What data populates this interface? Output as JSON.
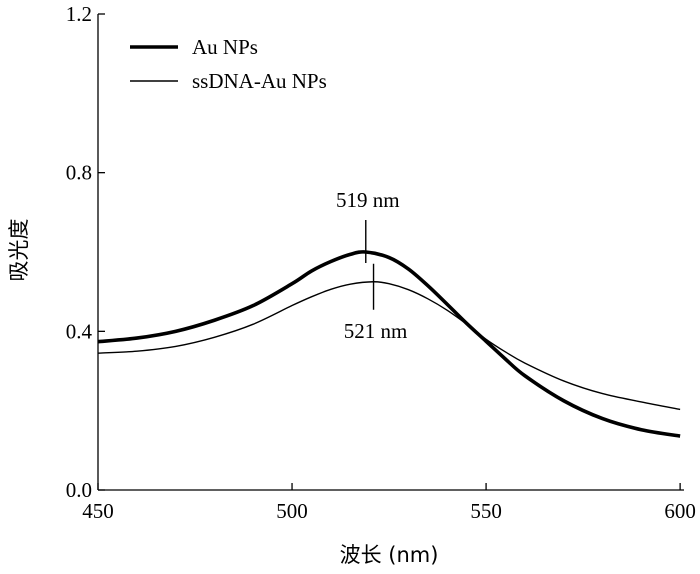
{
  "chart_data": {
    "type": "line",
    "title": "",
    "xlabel": "波长 (nm)",
    "ylabel": "吸光度",
    "xlim": [
      450,
      601
    ],
    "ylim": [
      0.0,
      1.2
    ],
    "x_ticks": [
      450,
      500,
      550,
      600
    ],
    "y_ticks": [
      0.0,
      0.4,
      0.8,
      1.2
    ],
    "x_tick_labels": [
      "450",
      "500",
      "550",
      "600"
    ],
    "y_tick_labels": [
      "0.0",
      "0.4",
      "0.8",
      "1.2"
    ],
    "grid": false,
    "legend_position": "top-left",
    "series": [
      {
        "name": "Au NPs",
        "line_width": "thick",
        "color": "#000000",
        "x": [
          450,
          460,
          470,
          480,
          490,
          500,
          505,
          510,
          515,
          519,
          525,
          530,
          535,
          540,
          545,
          550,
          555,
          560,
          570,
          580,
          590,
          600
        ],
        "y": [
          0.374,
          0.383,
          0.4,
          0.428,
          0.465,
          0.52,
          0.552,
          0.576,
          0.594,
          0.6,
          0.586,
          0.557,
          0.515,
          0.468,
          0.42,
          0.375,
          0.33,
          0.288,
          0.225,
          0.18,
          0.152,
          0.136
        ]
      },
      {
        "name": "ssDNA-Au NPs",
        "line_width": "thin",
        "color": "#000000",
        "x": [
          450,
          460,
          470,
          480,
          490,
          500,
          505,
          510,
          515,
          521,
          525,
          530,
          535,
          540,
          545,
          550,
          555,
          560,
          570,
          580,
          590,
          600
        ],
        "y": [
          0.345,
          0.35,
          0.362,
          0.385,
          0.418,
          0.465,
          0.487,
          0.506,
          0.519,
          0.525,
          0.52,
          0.505,
          0.482,
          0.453,
          0.418,
          0.38,
          0.348,
          0.32,
          0.275,
          0.243,
          0.222,
          0.203
        ]
      }
    ],
    "annotations": [
      {
        "text": "519 nm",
        "x": 519,
        "y": 0.6,
        "position": "above"
      },
      {
        "text": "521 nm",
        "x": 521,
        "y": 0.525,
        "position": "below"
      }
    ]
  }
}
